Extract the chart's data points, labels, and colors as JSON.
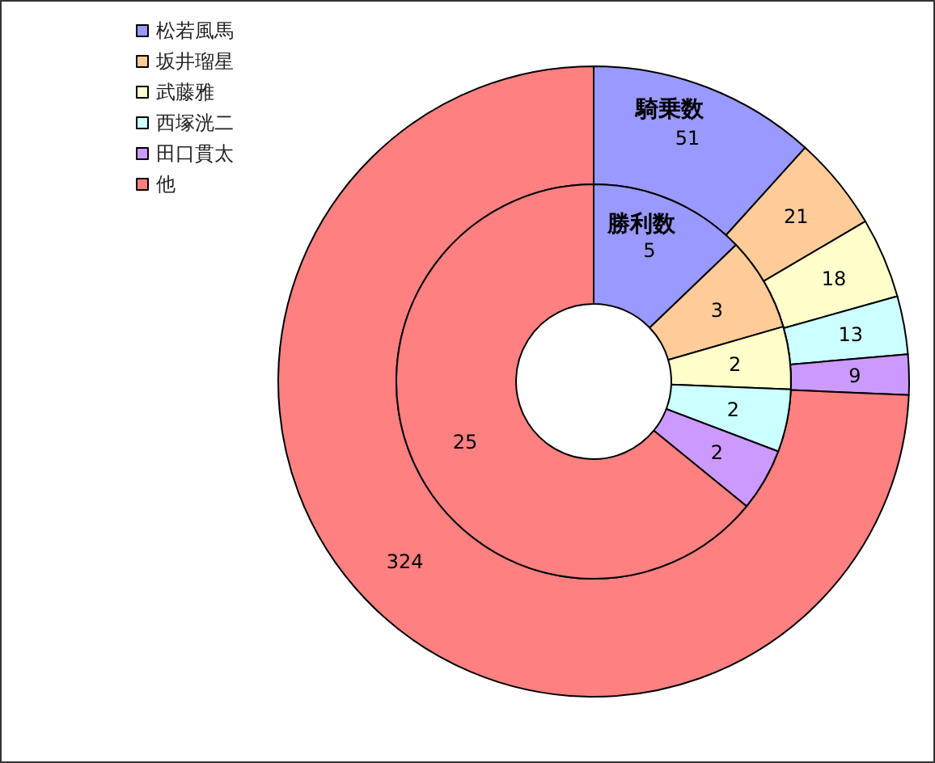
{
  "chart_data": {
    "type": "donut",
    "categories": [
      "松若風馬",
      "坂井瑠星",
      "武藤雅",
      "西塚洸二",
      "田口貫太",
      "他"
    ],
    "colors": [
      "#9999ff",
      "#ffcc99",
      "#ffffcc",
      "#ccffff",
      "#cc99ff",
      "#ff8080"
    ],
    "series": [
      {
        "name": "騎乗数",
        "values": [
          51,
          21,
          18,
          13,
          9,
          324
        ]
      },
      {
        "name": "勝利数",
        "values": [
          5,
          3,
          2,
          2,
          2,
          25
        ]
      }
    ],
    "data_labels": true,
    "legend": "top left"
  }
}
